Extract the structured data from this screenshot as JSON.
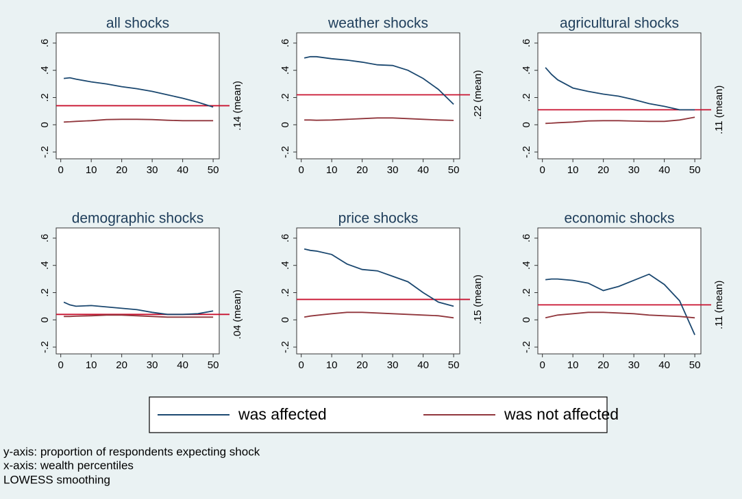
{
  "chart_data": [
    {
      "type": "line",
      "title": "all shocks",
      "x": [
        1,
        3,
        5,
        10,
        15,
        20,
        25,
        30,
        35,
        40,
        45,
        50
      ],
      "series": [
        {
          "name": "was affected",
          "color": "#1a476f",
          "values": [
            0.34,
            0.345,
            0.335,
            0.315,
            0.3,
            0.28,
            0.265,
            0.245,
            0.22,
            0.195,
            0.165,
            0.13
          ]
        },
        {
          "name": "was not affected",
          "color": "#90353b",
          "values": [
            0.02,
            0.022,
            0.025,
            0.03,
            0.038,
            0.04,
            0.04,
            0.038,
            0.033,
            0.03,
            0.03,
            0.03
          ]
        }
      ],
      "mean_line": {
        "value": 0.14,
        "label": ".14 (mean)",
        "color": "#c8102e"
      },
      "xlim": [
        -1.5,
        52
      ],
      "ylim": [
        -0.25,
        0.675
      ],
      "xticks": [
        0,
        10,
        20,
        30,
        40,
        50
      ],
      "yticks": [
        {
          "value": -0.2,
          "label": "-.2"
        },
        0,
        {
          "value": 0.2,
          "label": ".2"
        },
        {
          "value": 0.4,
          "label": ".4"
        },
        {
          "value": 0.6,
          "label": ".6"
        }
      ]
    },
    {
      "type": "line",
      "title": "weather shocks",
      "x": [
        1,
        3,
        5,
        10,
        15,
        20,
        25,
        30,
        35,
        40,
        45,
        50
      ],
      "series": [
        {
          "name": "was affected",
          "color": "#1a476f",
          "values": [
            0.49,
            0.5,
            0.5,
            0.485,
            0.475,
            0.46,
            0.44,
            0.435,
            0.4,
            0.34,
            0.26,
            0.15
          ]
        },
        {
          "name": "was not affected",
          "color": "#90353b",
          "values": [
            0.035,
            0.035,
            0.033,
            0.035,
            0.04,
            0.045,
            0.05,
            0.05,
            0.045,
            0.04,
            0.035,
            0.032
          ]
        }
      ],
      "mean_line": {
        "value": 0.22,
        "label": ".22 (mean)",
        "color": "#c8102e"
      },
      "xlim": [
        -1.5,
        52
      ],
      "ylim": [
        -0.25,
        0.675
      ],
      "xticks": [
        0,
        10,
        20,
        30,
        40,
        50
      ],
      "yticks": [
        {
          "value": -0.2,
          "label": "-.2"
        },
        0,
        {
          "value": 0.2,
          "label": ".2"
        },
        {
          "value": 0.4,
          "label": ".4"
        },
        {
          "value": 0.6,
          "label": ".6"
        }
      ]
    },
    {
      "type": "line",
      "title": "agricultural shocks",
      "x": [
        1,
        3,
        5,
        10,
        15,
        20,
        25,
        30,
        35,
        40,
        45,
        50
      ],
      "series": [
        {
          "name": "was affected",
          "color": "#1a476f",
          "values": [
            0.42,
            0.37,
            0.33,
            0.27,
            0.245,
            0.225,
            0.21,
            0.185,
            0.155,
            0.135,
            0.11,
            0.11
          ]
        },
        {
          "name": "was not affected",
          "color": "#90353b",
          "values": [
            0.01,
            0.012,
            0.015,
            0.02,
            0.028,
            0.03,
            0.03,
            0.027,
            0.025,
            0.025,
            0.035,
            0.055
          ]
        }
      ],
      "mean_line": {
        "value": 0.11,
        "label": ".11 (mean)",
        "color": "#c8102e"
      },
      "xlim": [
        -1.5,
        52
      ],
      "ylim": [
        -0.25,
        0.675
      ],
      "xticks": [
        0,
        10,
        20,
        30,
        40,
        50
      ],
      "yticks": [
        {
          "value": -0.2,
          "label": "-.2"
        },
        0,
        {
          "value": 0.2,
          "label": ".2"
        },
        {
          "value": 0.4,
          "label": ".4"
        },
        {
          "value": 0.6,
          "label": ".6"
        }
      ]
    },
    {
      "type": "line",
      "title": "demographic shocks",
      "x": [
        1,
        3,
        5,
        10,
        15,
        20,
        25,
        30,
        35,
        40,
        45,
        50
      ],
      "series": [
        {
          "name": "was affected",
          "color": "#1a476f",
          "values": [
            0.13,
            0.11,
            0.1,
            0.105,
            0.095,
            0.085,
            0.075,
            0.055,
            0.04,
            0.04,
            0.045,
            0.065
          ]
        },
        {
          "name": "was not affected",
          "color": "#90353b",
          "values": [
            0.025,
            0.025,
            0.027,
            0.03,
            0.035,
            0.035,
            0.03,
            0.025,
            0.02,
            0.02,
            0.02,
            0.02
          ]
        }
      ],
      "mean_line": {
        "value": 0.04,
        "label": ".04 (mean)",
        "color": "#c8102e"
      },
      "xlim": [
        -1.5,
        52
      ],
      "ylim": [
        -0.25,
        0.675
      ],
      "xticks": [
        0,
        10,
        20,
        30,
        40,
        50
      ],
      "yticks": [
        {
          "value": -0.2,
          "label": "-.2"
        },
        0,
        {
          "value": 0.2,
          "label": ".2"
        },
        {
          "value": 0.4,
          "label": ".4"
        },
        {
          "value": 0.6,
          "label": ".6"
        }
      ]
    },
    {
      "type": "line",
      "title": "price shocks",
      "x": [
        1,
        3,
        5,
        10,
        15,
        20,
        25,
        30,
        35,
        40,
        45,
        50
      ],
      "series": [
        {
          "name": "was affected",
          "color": "#1a476f",
          "values": [
            0.52,
            0.51,
            0.505,
            0.48,
            0.41,
            0.37,
            0.36,
            0.32,
            0.28,
            0.2,
            0.13,
            0.1
          ]
        },
        {
          "name": "was not affected",
          "color": "#90353b",
          "values": [
            0.02,
            0.028,
            0.033,
            0.045,
            0.055,
            0.055,
            0.05,
            0.045,
            0.04,
            0.035,
            0.03,
            0.015
          ]
        }
      ],
      "mean_line": {
        "value": 0.15,
        "label": ".15 (mean)",
        "color": "#c8102e"
      },
      "xlim": [
        -1.5,
        52
      ],
      "ylim": [
        -0.25,
        0.675
      ],
      "xticks": [
        0,
        10,
        20,
        30,
        40,
        50
      ],
      "yticks": [
        {
          "value": -0.2,
          "label": "-.2"
        },
        0,
        {
          "value": 0.2,
          "label": ".2"
        },
        {
          "value": 0.4,
          "label": ".4"
        },
        {
          "value": 0.6,
          "label": ".6"
        }
      ]
    },
    {
      "type": "line",
      "title": "economic shocks",
      "x": [
        1,
        3,
        5,
        10,
        15,
        20,
        25,
        30,
        35,
        40,
        45,
        50
      ],
      "series": [
        {
          "name": "was affected",
          "color": "#1a476f",
          "values": [
            0.295,
            0.3,
            0.3,
            0.29,
            0.27,
            0.215,
            0.245,
            0.29,
            0.335,
            0.26,
            0.14,
            -0.11
          ]
        },
        {
          "name": "was not affected",
          "color": "#90353b",
          "values": [
            0.015,
            0.025,
            0.035,
            0.045,
            0.055,
            0.055,
            0.05,
            0.045,
            0.035,
            0.03,
            0.025,
            0.015
          ]
        }
      ],
      "mean_line": {
        "value": 0.11,
        "label": ".11 (mean)",
        "color": "#c8102e"
      },
      "xlim": [
        -1.5,
        52
      ],
      "ylim": [
        -0.25,
        0.675
      ],
      "xticks": [
        0,
        10,
        20,
        30,
        40,
        50
      ],
      "yticks": [
        {
          "value": -0.2,
          "label": "-.2"
        },
        0,
        {
          "value": 0.2,
          "label": ".2"
        },
        {
          "value": 0.4,
          "label": ".4"
        },
        {
          "value": 0.6,
          "label": ".6"
        }
      ]
    }
  ],
  "notes": [
    "y-axis: proportion of respondents expecting shock",
    "x-axis: wealth percentiles",
    "LOWESS smoothing"
  ]
}
